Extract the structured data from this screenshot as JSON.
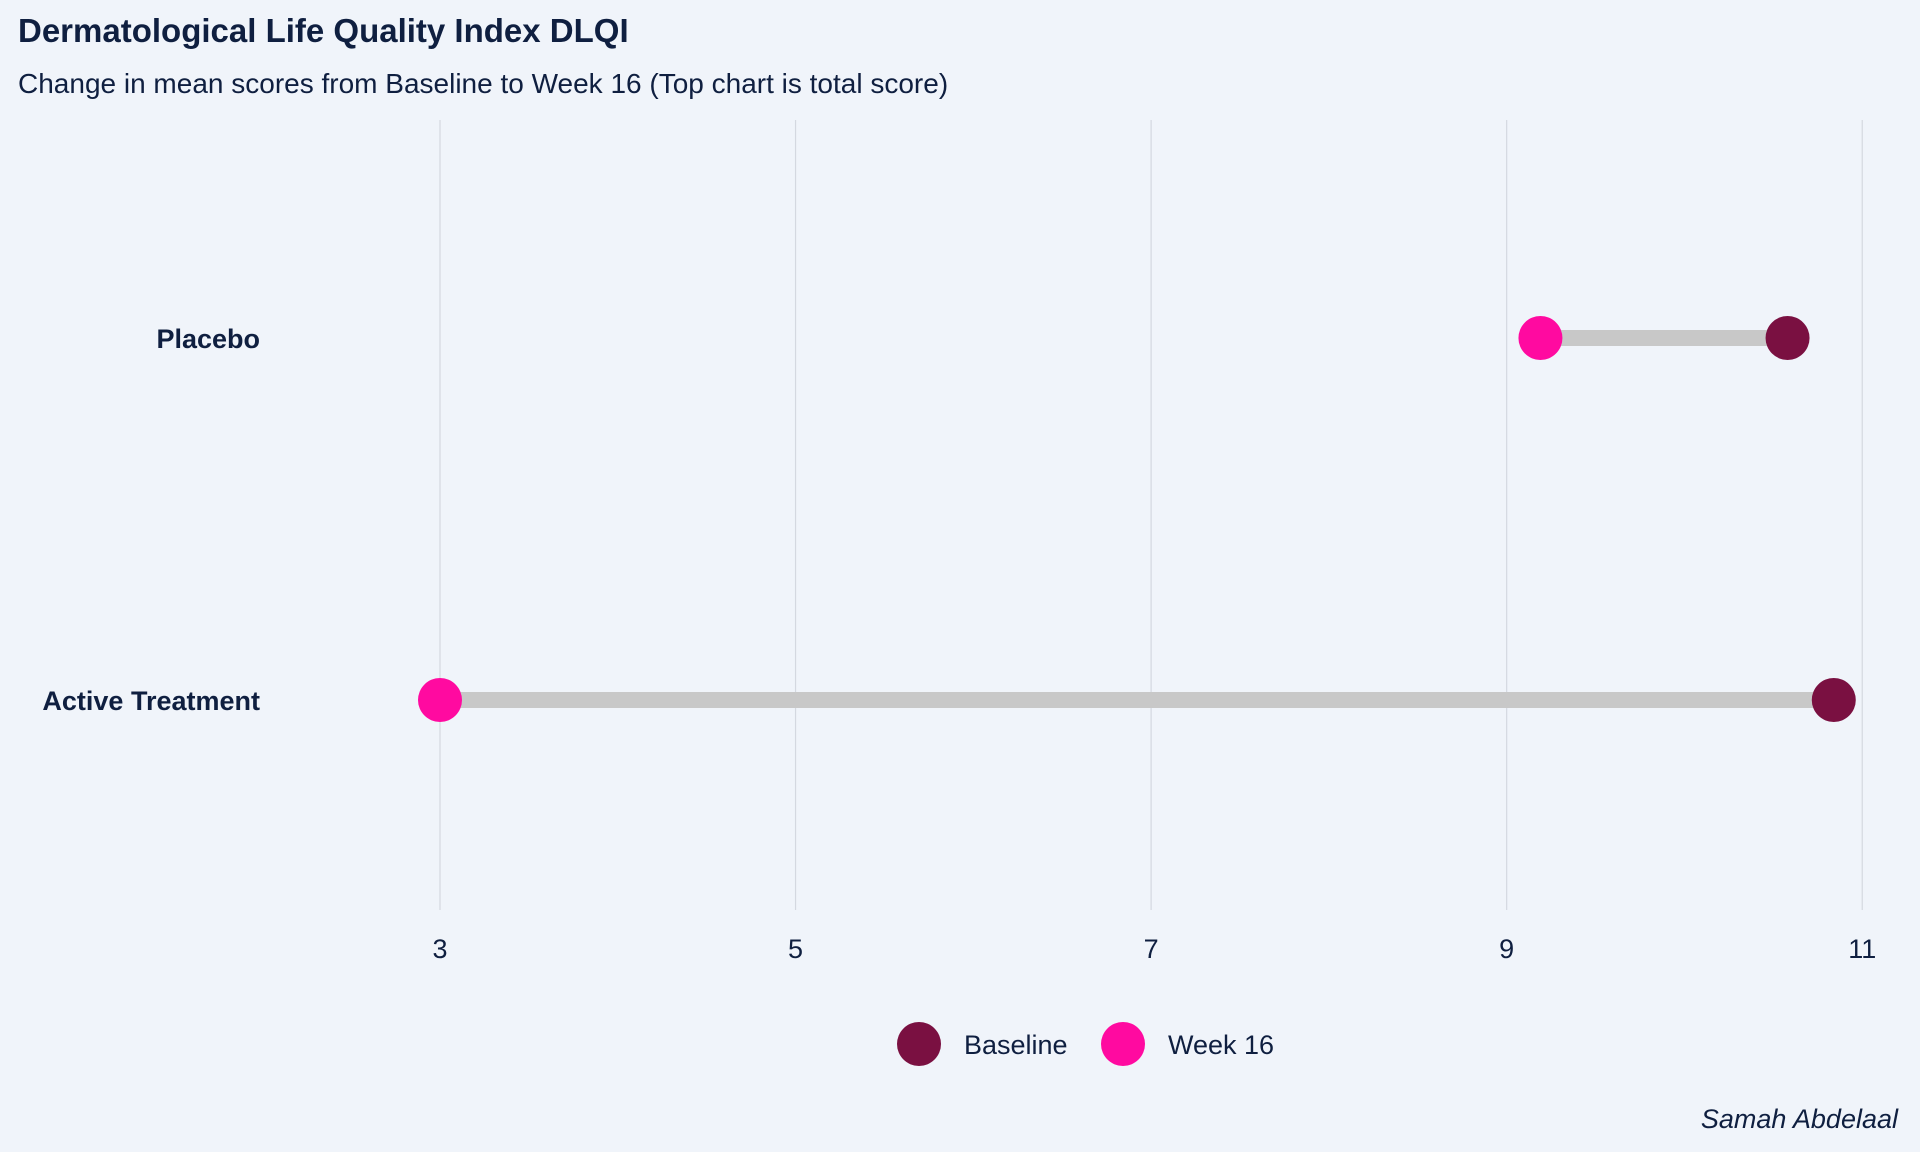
{
  "chart_data": {
    "type": "dumbbell",
    "title": "Dermatological Life Quality Index DLQI",
    "subtitle": "Change in mean scores from Baseline to Week 16  (Top chart is total score)",
    "caption": "Samah Abdelaal",
    "categories": [
      "Placebo",
      "Active Treatment"
    ],
    "series": [
      {
        "name": "Baseline",
        "color": "#7a1041",
        "values": [
          10.58,
          10.84
        ]
      },
      {
        "name": "Week 16",
        "color": "#ff0aa0",
        "values": [
          9.19,
          3.0
        ]
      }
    ],
    "connector_color": "#c8c8c8",
    "x_ticks": [
      3,
      5,
      7,
      9,
      11
    ],
    "xlim": [
      1.2,
      11.1
    ],
    "grid": "vertical",
    "legend_position": "bottom"
  }
}
